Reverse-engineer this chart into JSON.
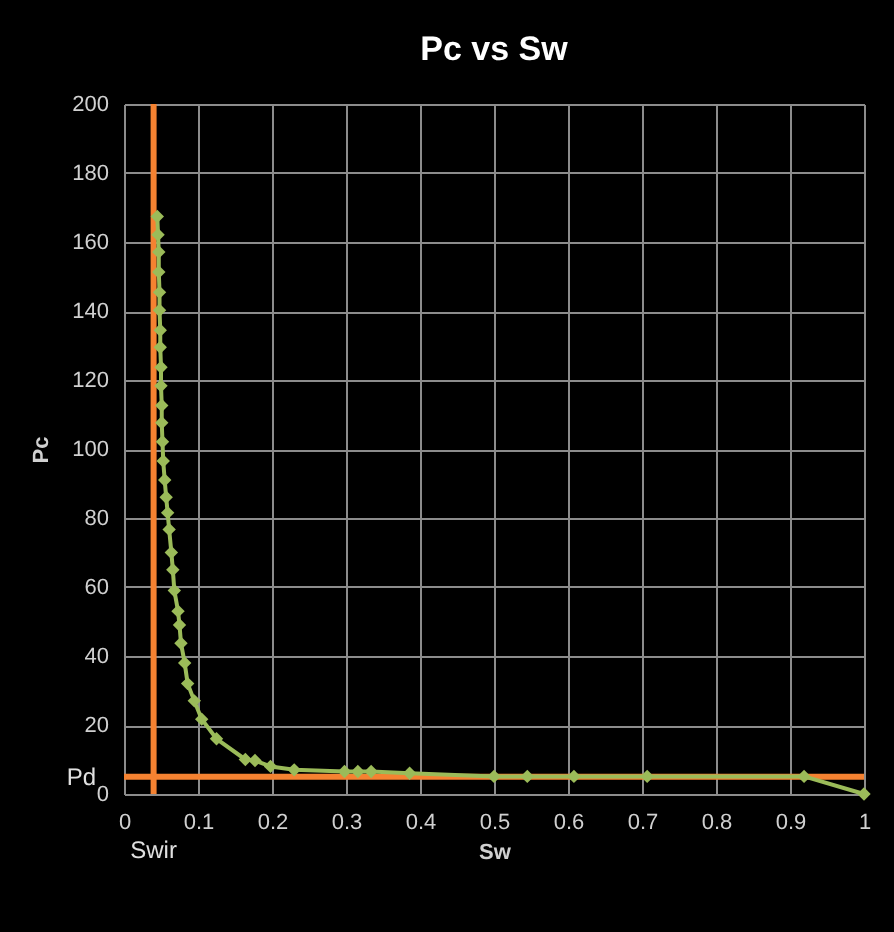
{
  "chart_data": {
    "type": "line",
    "title": "Pc vs Sw",
    "xlabel": "Sw",
    "ylabel": "Pc",
    "x": [
      0.045,
      0.046,
      0.047,
      0.047,
      0.048,
      0.048,
      0.049,
      0.049,
      0.05,
      0.05,
      0.051,
      0.051,
      0.052,
      0.053,
      0.055,
      0.057,
      0.059,
      0.061,
      0.064,
      0.066,
      0.068,
      0.073,
      0.075,
      0.077,
      0.082,
      0.086,
      0.095,
      0.105,
      0.125,
      0.164,
      0.177,
      0.198,
      0.23,
      0.298,
      0.316,
      0.334,
      0.386,
      0.5,
      0.545,
      0.608,
      0.707,
      0.919,
      1.0
    ],
    "series": [
      {
        "color": "#9bbb59",
        "values": [
          167.4,
          162.1,
          157.1,
          151.3,
          145.4,
          140.2,
          134.4,
          129.5,
          123.7,
          118.3,
          112.6,
          107.6,
          102.1,
          96.5,
          91,
          86,
          81.5,
          76.7,
          70,
          65,
          59,
          53,
          49,
          43.7,
          38,
          32,
          27,
          21.7,
          16,
          10,
          9.7,
          8,
          7,
          6.5,
          6.5,
          6.5,
          6,
          5.1,
          5.1,
          5.1,
          5.1,
          5.1,
          0
        ]
      }
    ],
    "xlim": [
      0,
      1
    ],
    "xticks": [
      0,
      0.1,
      0.2,
      0.3,
      0.4,
      0.5,
      0.6,
      0.7,
      0.8,
      0.9,
      1
    ],
    "ylim": [
      0,
      200
    ],
    "yticks": [
      0,
      20,
      40,
      60,
      80,
      100,
      120,
      140,
      160,
      180,
      200
    ],
    "grid": true,
    "marker": "diamond",
    "line_style": "solid",
    "ref_lines": [
      {
        "axis": "x",
        "value": 0.04,
        "label": "Swir",
        "color": "#f58231"
      },
      {
        "axis": "y",
        "value": 5,
        "label": "Pd",
        "color": "#f58231"
      }
    ]
  }
}
